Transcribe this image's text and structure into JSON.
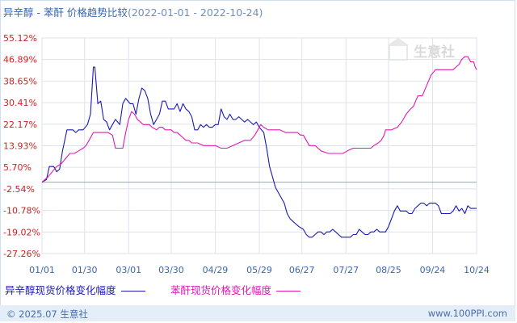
{
  "header": {
    "title": "异辛醇 - 苯酐 价格趋势比较",
    "date_range": "(2022-01-01 - 2022-10-24)"
  },
  "watermark": "生意社",
  "footer": {
    "copyright": "© 2025.07 生意社",
    "site": "www.100PPI.com"
  },
  "chart_data": {
    "type": "line",
    "title": "异辛醇 - 苯酐 价格趋势比较",
    "xlabel": "",
    "ylabel": "",
    "ylim": [
      -27.26,
      55.12
    ],
    "y_ticks": [
      "55.12%",
      "46.89%",
      "38.65%",
      "30.41%",
      "22.17%",
      "13.93%",
      "5.70%",
      "-2.54%",
      "-10.78%",
      "-19.02%",
      "-27.26%"
    ],
    "y_tick_values": [
      55.12,
      46.89,
      38.65,
      30.41,
      22.17,
      13.93,
      5.7,
      -2.54,
      -10.78,
      -19.02,
      -27.26
    ],
    "x_ticks": [
      "01/01",
      "01/30",
      "03/01",
      "03/30",
      "04/29",
      "05/29",
      "06/27",
      "07/27",
      "08/25",
      "09/24",
      "10/24"
    ],
    "x_tick_days": [
      0,
      29,
      59,
      88,
      118,
      148,
      177,
      207,
      236,
      266,
      296
    ],
    "zero_line": 0,
    "grid": true,
    "legend_position": "bottom",
    "series": [
      {
        "name": "异辛醇现货价格变化幅度",
        "color": "#1a1ab4",
        "points": [
          [
            0,
            0
          ],
          [
            3,
            1
          ],
          [
            5,
            6
          ],
          [
            8,
            6
          ],
          [
            10,
            4
          ],
          [
            12,
            5
          ],
          [
            14,
            12
          ],
          [
            17,
            20
          ],
          [
            21,
            20
          ],
          [
            23,
            19
          ],
          [
            25,
            20
          ],
          [
            28,
            20
          ],
          [
            31,
            22
          ],
          [
            33,
            26
          ],
          [
            35,
            44
          ],
          [
            36,
            44
          ],
          [
            38,
            30
          ],
          [
            40,
            31
          ],
          [
            42,
            24
          ],
          [
            44,
            23
          ],
          [
            46,
            20
          ],
          [
            48,
            22
          ],
          [
            50,
            24
          ],
          [
            53,
            22
          ],
          [
            55,
            30
          ],
          [
            57,
            32
          ],
          [
            60,
            30
          ],
          [
            62,
            30
          ],
          [
            64,
            26
          ],
          [
            66,
            32
          ],
          [
            68,
            36
          ],
          [
            70,
            35
          ],
          [
            72,
            32
          ],
          [
            74,
            26
          ],
          [
            76,
            22
          ],
          [
            78,
            24
          ],
          [
            80,
            26
          ],
          [
            82,
            31
          ],
          [
            84,
            31
          ],
          [
            86,
            28
          ],
          [
            88,
            28
          ],
          [
            90,
            28
          ],
          [
            92,
            30
          ],
          [
            94,
            27
          ],
          [
            96,
            30
          ],
          [
            98,
            28
          ],
          [
            100,
            27
          ],
          [
            102,
            25
          ],
          [
            104,
            20
          ],
          [
            106,
            20
          ],
          [
            108,
            22
          ],
          [
            110,
            21
          ],
          [
            112,
            22
          ],
          [
            114,
            21
          ],
          [
            116,
            21
          ],
          [
            118,
            22
          ],
          [
            120,
            22
          ],
          [
            122,
            28
          ],
          [
            124,
            25
          ],
          [
            126,
            24
          ],
          [
            128,
            26
          ],
          [
            130,
            24
          ],
          [
            132,
            24
          ],
          [
            134,
            25
          ],
          [
            136,
            24
          ],
          [
            138,
            23
          ],
          [
            140,
            24
          ],
          [
            142,
            23
          ],
          [
            144,
            22
          ],
          [
            146,
            23
          ],
          [
            148,
            21
          ],
          [
            151,
            19
          ],
          [
            153,
            13
          ],
          [
            155,
            6
          ],
          [
            157,
            2
          ],
          [
            159,
            -2
          ],
          [
            161,
            -4
          ],
          [
            163,
            -6
          ],
          [
            165,
            -8
          ],
          [
            167,
            -12
          ],
          [
            169,
            -14
          ],
          [
            171,
            -15
          ],
          [
            173,
            -16
          ],
          [
            175,
            -17
          ],
          [
            178,
            -18
          ],
          [
            180,
            -20
          ],
          [
            182,
            -21
          ],
          [
            184,
            -21
          ],
          [
            186,
            -20
          ],
          [
            188,
            -19
          ],
          [
            190,
            -19
          ],
          [
            192,
            -20
          ],
          [
            194,
            -19
          ],
          [
            196,
            -19
          ],
          [
            198,
            -18
          ],
          [
            200,
            -19
          ],
          [
            202,
            -20
          ],
          [
            204,
            -21
          ],
          [
            206,
            -21
          ],
          [
            208,
            -21
          ],
          [
            210,
            -21
          ],
          [
            212,
            -20
          ],
          [
            214,
            -20
          ],
          [
            216,
            -18
          ],
          [
            218,
            -19
          ],
          [
            220,
            -20
          ],
          [
            222,
            -20
          ],
          [
            224,
            -19
          ],
          [
            226,
            -19
          ],
          [
            228,
            -18
          ],
          [
            230,
            -19
          ],
          [
            232,
            -19
          ],
          [
            234,
            -19
          ],
          [
            236,
            -17
          ],
          [
            238,
            -14
          ],
          [
            240,
            -11
          ],
          [
            242,
            -9
          ],
          [
            244,
            -11
          ],
          [
            246,
            -11
          ],
          [
            248,
            -11
          ],
          [
            250,
            -12
          ],
          [
            252,
            -12
          ],
          [
            254,
            -10
          ],
          [
            256,
            -9
          ],
          [
            258,
            -8
          ],
          [
            260,
            -8
          ],
          [
            262,
            -9
          ],
          [
            264,
            -8
          ],
          [
            266,
            -8
          ],
          [
            268,
            -8
          ],
          [
            270,
            -9
          ],
          [
            272,
            -12
          ],
          [
            274,
            -12
          ],
          [
            276,
            -12
          ],
          [
            278,
            -12
          ],
          [
            280,
            -11
          ],
          [
            282,
            -9
          ],
          [
            284,
            -11
          ],
          [
            286,
            -10
          ],
          [
            288,
            -12
          ],
          [
            290,
            -9
          ],
          [
            292,
            -10
          ],
          [
            294,
            -10
          ],
          [
            296,
            -10
          ]
        ]
      },
      {
        "name": "苯酐现货价格变化幅度",
        "color": "#e01ab4",
        "points": [
          [
            0,
            0
          ],
          [
            2,
            1
          ],
          [
            4,
            2
          ],
          [
            7,
            4
          ],
          [
            10,
            6
          ],
          [
            13,
            7
          ],
          [
            16,
            9
          ],
          [
            19,
            11
          ],
          [
            22,
            11
          ],
          [
            25,
            12
          ],
          [
            28,
            13
          ],
          [
            30,
            14
          ],
          [
            32,
            16
          ],
          [
            35,
            19
          ],
          [
            40,
            19
          ],
          [
            45,
            19
          ],
          [
            48,
            18
          ],
          [
            50,
            13
          ],
          [
            55,
            13
          ],
          [
            57,
            19
          ],
          [
            59,
            24
          ],
          [
            61,
            27
          ],
          [
            63,
            26
          ],
          [
            65,
            24
          ],
          [
            67,
            23
          ],
          [
            69,
            22
          ],
          [
            73,
            22
          ],
          [
            75,
            21
          ],
          [
            78,
            20
          ],
          [
            80,
            21
          ],
          [
            82,
            21
          ],
          [
            84,
            20
          ],
          [
            88,
            20
          ],
          [
            90,
            19
          ],
          [
            92,
            19
          ],
          [
            94,
            18
          ],
          [
            96,
            17
          ],
          [
            98,
            16
          ],
          [
            100,
            16
          ],
          [
            102,
            15
          ],
          [
            106,
            15
          ],
          [
            110,
            14
          ],
          [
            114,
            14
          ],
          [
            118,
            14
          ],
          [
            122,
            13
          ],
          [
            126,
            13
          ],
          [
            130,
            14
          ],
          [
            134,
            15
          ],
          [
            138,
            16
          ],
          [
            142,
            16
          ],
          [
            145,
            18
          ],
          [
            147,
            20
          ],
          [
            149,
            22
          ],
          [
            151,
            21
          ],
          [
            154,
            20
          ],
          [
            158,
            20
          ],
          [
            162,
            20
          ],
          [
            166,
            19
          ],
          [
            170,
            19
          ],
          [
            174,
            19
          ],
          [
            176,
            18
          ],
          [
            178,
            18
          ],
          [
            180,
            16
          ],
          [
            182,
            14
          ],
          [
            184,
            14
          ],
          [
            186,
            14
          ],
          [
            188,
            13
          ],
          [
            190,
            12
          ],
          [
            195,
            11
          ],
          [
            200,
            11
          ],
          [
            205,
            11
          ],
          [
            208,
            12
          ],
          [
            212,
            13
          ],
          [
            218,
            13
          ],
          [
            224,
            13
          ],
          [
            226,
            14
          ],
          [
            229,
            15
          ],
          [
            231,
            16
          ],
          [
            233,
            18
          ],
          [
            234,
            20
          ],
          [
            238,
            20
          ],
          [
            242,
            21
          ],
          [
            245,
            23
          ],
          [
            248,
            26
          ],
          [
            251,
            28
          ],
          [
            253,
            29
          ],
          [
            256,
            33
          ],
          [
            259,
            33
          ],
          [
            262,
            37
          ],
          [
            265,
            41
          ],
          [
            268,
            43
          ],
          [
            272,
            43
          ],
          [
            276,
            43
          ],
          [
            280,
            43
          ],
          [
            282,
            44
          ],
          [
            284,
            45
          ],
          [
            286,
            47
          ],
          [
            288,
            48
          ],
          [
            290,
            48
          ],
          [
            292,
            46
          ],
          [
            294,
            46
          ],
          [
            295,
            44
          ],
          [
            296,
            43
          ]
        ]
      }
    ]
  }
}
